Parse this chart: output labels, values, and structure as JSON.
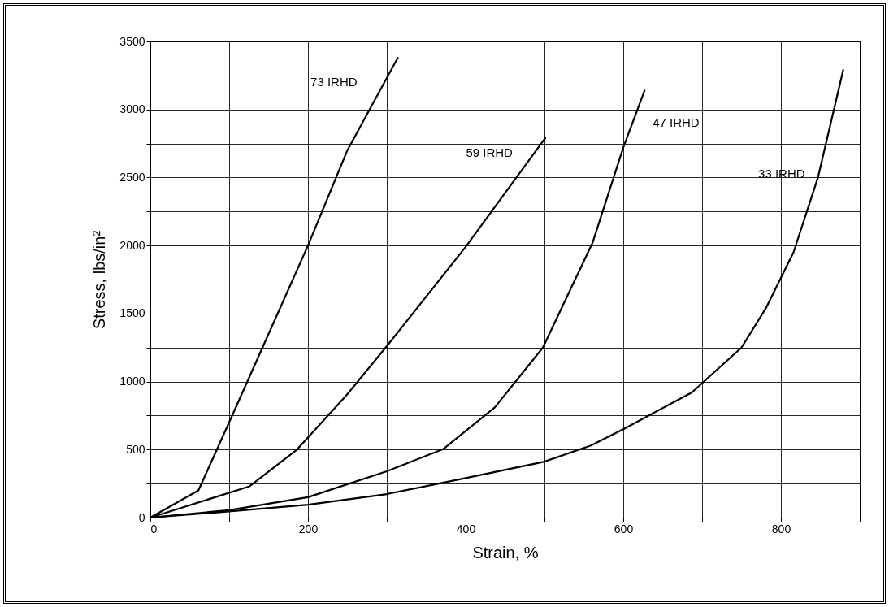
{
  "chart_data": {
    "type": "line",
    "xlabel": "Strain, %",
    "ylabel": "Stress, lbs/in²",
    "xlim": [
      0,
      900
    ],
    "ylim": [
      0,
      3500
    ],
    "xticks": [
      0,
      {
        "value": 100,
        "label": null
      },
      200,
      {
        "value": 300,
        "label": null
      },
      400,
      {
        "value": 500,
        "label": null
      },
      600,
      {
        "value": 700,
        "label": null
      },
      800,
      {
        "value": 900,
        "label": null
      }
    ],
    "yticks": [
      0,
      {
        "value": 250,
        "label": null
      },
      500,
      {
        "value": 750,
        "label": null
      },
      1000,
      {
        "value": 1250,
        "label": null
      },
      1500,
      {
        "value": 1750,
        "label": null
      },
      2000,
      {
        "value": 2250,
        "label": null
      },
      2500,
      {
        "value": 2750,
        "label": null
      },
      3000,
      {
        "value": 3250,
        "label": null
      },
      3500
    ],
    "grid": true,
    "legend": false,
    "marker": "none",
    "line_style": "solid",
    "series": [
      {
        "name": "73 IRHD",
        "color": "#000000",
        "x": [
          0,
          61,
          100,
          150,
          200,
          250,
          314
        ],
        "values": [
          0,
          200,
          700,
          1350,
          2000,
          2700,
          3380
        ]
      },
      {
        "name": "59 IRHD",
        "color": "#000000",
        "x": [
          0,
          126,
          186,
          249,
          300,
          400,
          501
        ],
        "values": [
          0,
          230,
          500,
          900,
          1260,
          1990,
          2790
        ]
      },
      {
        "name": "47 IRHD",
        "color": "#000000",
        "x": [
          0,
          100,
          200,
          300,
          372,
          437,
          498,
          561,
          600,
          627
        ],
        "values": [
          0,
          55,
          150,
          340,
          505,
          810,
          1250,
          2020,
          2720,
          3140
        ]
      },
      {
        "name": "33 IRHD",
        "color": "#000000",
        "x": [
          0,
          100,
          200,
          300,
          400,
          499,
          559,
          600,
          687,
          750,
          781,
          816,
          847,
          879
        ],
        "values": [
          0,
          45,
          95,
          173,
          290,
          410,
          530,
          650,
          920,
          1250,
          1540,
          1950,
          2500,
          3290
        ]
      }
    ]
  }
}
